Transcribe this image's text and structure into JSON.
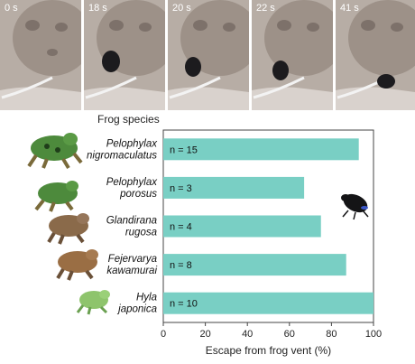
{
  "frames": [
    {
      "time": "0 s"
    },
    {
      "time": "18 s"
    },
    {
      "time": "20 s"
    },
    {
      "time": "22 s"
    },
    {
      "time": "41 s"
    }
  ],
  "colors": {
    "bar": "#79cfc4",
    "axis": "#444444"
  },
  "chart_data": {
    "type": "bar",
    "orientation": "horizontal",
    "title": "Frog species",
    "xlabel": "Escape from frog vent (%)",
    "xlim": [
      0,
      100
    ],
    "xticks": [
      "0",
      "20",
      "40",
      "60",
      "80",
      "100"
    ],
    "categories": [
      "Pelophylax nigromaculatus",
      "Pelophylax porosus",
      "Glandirana rugosa",
      "Fejervarya kawamurai",
      "Hyla japonica"
    ],
    "category_lines": [
      [
        "Pelophylax",
        "nigromaculatus"
      ],
      [
        "Pelophylax",
        "porosus"
      ],
      [
        "Glandirana",
        "rugosa"
      ],
      [
        "Fejervarya",
        "kawamurai"
      ],
      [
        "Hyla",
        "japonica"
      ]
    ],
    "values": [
      93,
      67,
      75,
      87,
      100
    ],
    "bar_labels": [
      "n = 15",
      "n = 3",
      "n = 4",
      "n = 8",
      "n = 10"
    ]
  }
}
